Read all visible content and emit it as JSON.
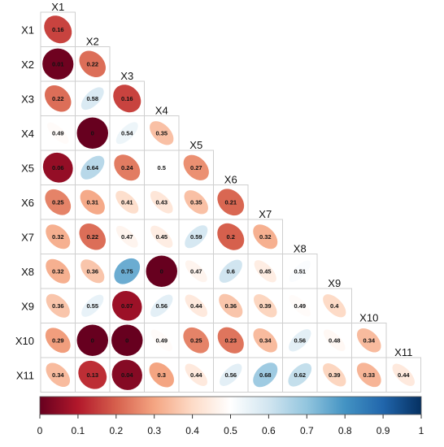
{
  "chart_data": {
    "type": "heatmap",
    "variables": [
      "X1",
      "X2",
      "X3",
      "X4",
      "X5",
      "X6",
      "X7",
      "X8",
      "X9",
      "X10",
      "X11"
    ],
    "cells": [
      [
        "0.16"
      ],
      [
        "0.01",
        "0.22"
      ],
      [
        "0.22",
        "0.58",
        "0.16"
      ],
      [
        "0.49",
        "0",
        "0.54",
        "0.35"
      ],
      [
        "0.06",
        "0.64",
        "0.24",
        "0.5",
        "0.27"
      ],
      [
        "0.25",
        "0.31",
        "0.41",
        "0.43",
        "0.35",
        "0.21"
      ],
      [
        "0.32",
        "0.22",
        "0.47",
        "0.45",
        "0.59",
        "0.2",
        "0.32"
      ],
      [
        "0.32",
        "0.36",
        "0.75",
        "0",
        "0.47",
        "0.6",
        "0.45",
        "0.51"
      ],
      [
        "0.36",
        "0.55",
        "0.07",
        "0.56",
        "0.44",
        "0.36",
        "0.39",
        "0.49",
        "0.4"
      ],
      [
        "0.29",
        "0",
        "0",
        "0.49",
        "0.25",
        "0.23",
        "0.34",
        "0.56",
        "0.48",
        "0.34"
      ],
      [
        "0.34",
        "0.13",
        "0.04",
        "0.3",
        "0.44",
        "0.56",
        "0.68",
        "0.62",
        "0.39",
        "0.33",
        "0.44"
      ]
    ],
    "colorbar": {
      "range": [
        0,
        1
      ],
      "ticks": [
        "0",
        "0.1",
        "0.2",
        "0.3",
        "0.4",
        "0.5",
        "0.6",
        "0.7",
        "0.8",
        "0.9",
        "1"
      ],
      "colormap": "red-white-blue",
      "colors": [
        "#67001F",
        "#B2182B",
        "#D6604D",
        "#F4A582",
        "#FDDBC7",
        "#FFFFFF",
        "#D1E5F0",
        "#92C5DE",
        "#4393C3",
        "#2166AC",
        "#053061"
      ]
    },
    "grid": true,
    "legend_position": "bottom"
  }
}
